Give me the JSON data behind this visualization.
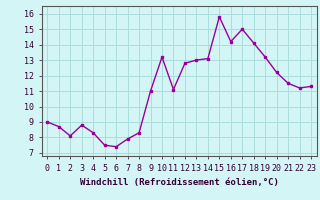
{
  "x": [
    0,
    1,
    2,
    3,
    4,
    5,
    6,
    7,
    8,
    9,
    10,
    11,
    12,
    13,
    14,
    15,
    16,
    17,
    18,
    19,
    20,
    21,
    22,
    23
  ],
  "y": [
    9.0,
    8.7,
    8.1,
    8.8,
    8.3,
    7.5,
    7.4,
    7.9,
    8.3,
    11.0,
    13.2,
    11.1,
    12.8,
    13.0,
    13.1,
    15.8,
    14.2,
    15.0,
    14.1,
    13.2,
    12.2,
    11.5,
    11.2,
    11.3
  ],
  "line_color": "#990099",
  "marker": "s",
  "marker_size": 2.0,
  "bg_color": "#d4f5f5",
  "grid_color": "#aadddd",
  "xlabel": "Windchill (Refroidissement éolien,°C)",
  "xlabel_fontsize": 6.5,
  "ylabel_ticks": [
    7,
    8,
    9,
    10,
    11,
    12,
    13,
    14,
    15,
    16
  ],
  "ylim": [
    6.8,
    16.5
  ],
  "xlim": [
    -0.5,
    23.5
  ],
  "tick_fontsize": 6.0,
  "line_width": 1.0,
  "spine_color": "#555555",
  "text_color": "#330033"
}
